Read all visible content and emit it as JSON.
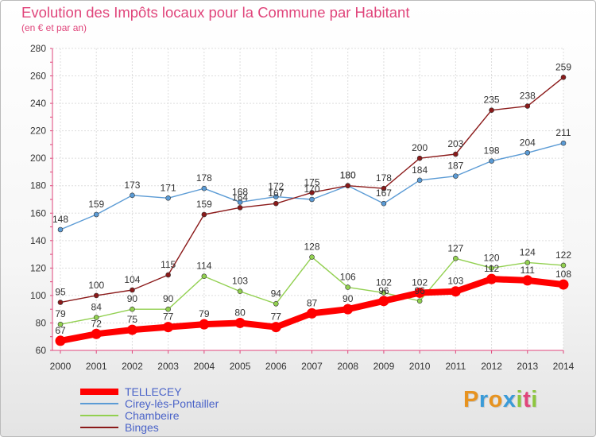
{
  "title": "Evolution des Impôts locaux pour la Commune par Habitant",
  "subtitle": "(en € et par an)",
  "logo": [
    "P",
    "r",
    "o",
    "x",
    "i",
    "t",
    "i"
  ],
  "colors": {
    "title": "#e0457b",
    "logo": [
      "#e79320",
      "#3a9bd8",
      "#e79320",
      "#3a9bd8",
      "#8dc63f",
      "#e0457b",
      "#8dc63f"
    ],
    "axis": "#e0457b",
    "grid": "#dddddd"
  },
  "chart_data": {
    "type": "line",
    "x": [
      2000,
      2001,
      2002,
      2003,
      2004,
      2005,
      2006,
      2007,
      2008,
      2009,
      2010,
      2011,
      2012,
      2013,
      2014
    ],
    "ylim": [
      60,
      280
    ],
    "yticks": [
      60,
      80,
      100,
      120,
      140,
      160,
      180,
      200,
      220,
      240,
      260,
      280
    ],
    "grid": true,
    "legend_position": "bottom-left",
    "series": [
      {
        "name": "TELLECEY",
        "color": "#ff0000",
        "values": [
          67,
          72,
          75,
          77,
          79,
          80,
          77,
          87,
          90,
          96,
          102,
          103,
          112,
          111,
          108
        ]
      },
      {
        "name": "Cirey-lès-Pontailler",
        "color": "#5b9bd5",
        "values": [
          148,
          159,
          173,
          171,
          178,
          168,
          172,
          170,
          180,
          167,
          184,
          187,
          198,
          204,
          211
        ]
      },
      {
        "name": "Chambeire",
        "color": "#92d050",
        "values": [
          79,
          84,
          90,
          90,
          114,
          103,
          94,
          128,
          106,
          102,
          96,
          127,
          120,
          124,
          122
        ]
      },
      {
        "name": "Binges",
        "color": "#8b1a1a",
        "values": [
          95,
          100,
          104,
          115,
          159,
          164,
          167,
          175,
          180,
          178,
          200,
          203,
          235,
          238,
          259
        ]
      }
    ]
  }
}
